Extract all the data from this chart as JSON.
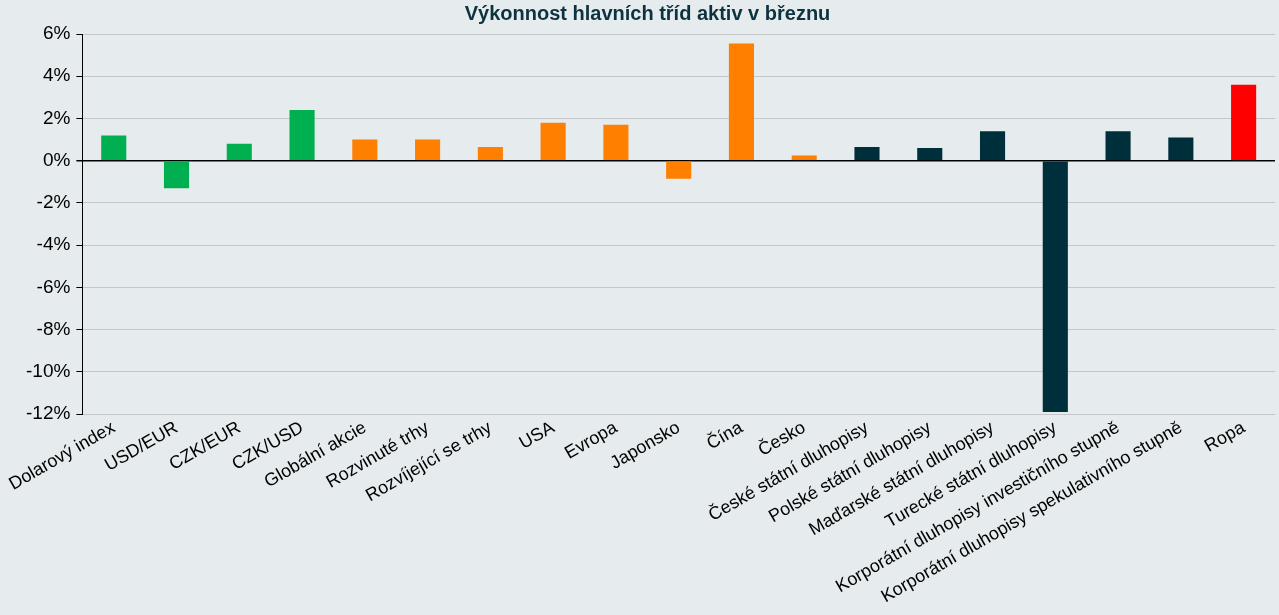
{
  "chart_data": {
    "type": "bar",
    "title": "Výkonnost hlavních tříd aktiv v březnu",
    "categories": [
      "Dolarový index",
      "USD/EUR",
      "CZK/EUR",
      "CZK/USD",
      "Globální akcie",
      "Rozvinuté trhy",
      "Rozvíjející se trhy",
      "USA",
      "Evropa",
      "Japonsko",
      "Čína",
      "Česko",
      "České státní dluhopisy",
      "Polské státní dluhopisy",
      "Maďarské státní dluhopisy",
      "Turecké státní dluhopisy",
      "Korporátní dluhopisy investičního stupně",
      "Korporátní dluhopisy spekulativního stupně",
      "Ropa"
    ],
    "values": [
      1.2,
      -1.3,
      0.8,
      2.4,
      1.0,
      1.0,
      0.65,
      1.8,
      1.7,
      -0.85,
      5.55,
      0.25,
      0.65,
      0.6,
      1.4,
      -11.9,
      1.4,
      1.1,
      3.6
    ],
    "colors": [
      "#00b050",
      "#00b050",
      "#00b050",
      "#00b050",
      "#ff8000",
      "#ff8000",
      "#ff8000",
      "#ff8000",
      "#ff8000",
      "#ff8000",
      "#ff8000",
      "#ff8000",
      "#002f3c",
      "#002f3c",
      "#002f3c",
      "#002f3c",
      "#002f3c",
      "#002f3c",
      "#ff0000"
    ],
    "ylim": [
      -12,
      6
    ],
    "yticks": [
      {
        "value": 6,
        "label": "6%"
      },
      {
        "value": 4,
        "label": "4%"
      },
      {
        "value": 2,
        "label": "2%"
      },
      {
        "value": 0,
        "label": "0%"
      },
      {
        "value": -2,
        "label": "-2%"
      },
      {
        "value": -4,
        "label": "-4%"
      },
      {
        "value": -6,
        "label": "-6%"
      },
      {
        "value": -8,
        "label": "-8%"
      },
      {
        "value": -10,
        "label": "-10%"
      },
      {
        "value": -12,
        "label": "-12%"
      }
    ],
    "grid": "y",
    "legend": false
  }
}
